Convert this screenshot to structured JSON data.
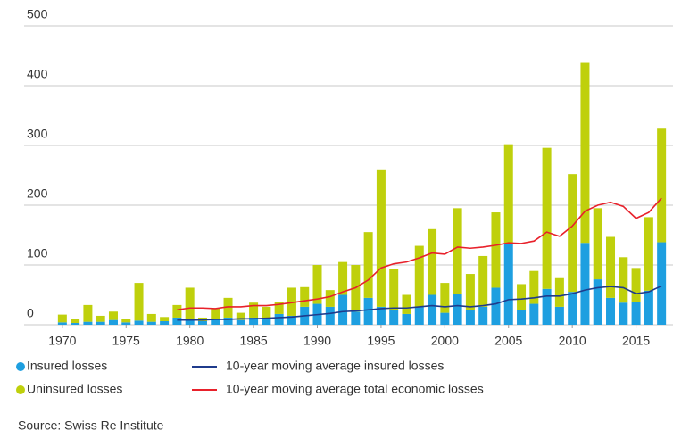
{
  "chart_data": {
    "type": "stacked-bar-line",
    "x": [
      1970,
      1971,
      1972,
      1973,
      1974,
      1975,
      1976,
      1977,
      1978,
      1979,
      1980,
      1981,
      1982,
      1983,
      1984,
      1985,
      1986,
      1987,
      1988,
      1989,
      1990,
      1991,
      1992,
      1993,
      1994,
      1995,
      1996,
      1997,
      1998,
      1999,
      2000,
      2001,
      2002,
      2003,
      2004,
      2005,
      2006,
      2007,
      2008,
      2009,
      2010,
      2011,
      2012,
      2013,
      2014,
      2015,
      2016,
      2017
    ],
    "xlim": [
      1967,
      2017.9
    ],
    "xticks": [
      1970,
      1975,
      1980,
      1985,
      1990,
      1995,
      2000,
      2005,
      2010,
      2015
    ],
    "ylim": [
      0,
      500
    ],
    "yticks": [
      0,
      100,
      200,
      300,
      400,
      500
    ],
    "grid": true,
    "series": [
      {
        "name": "Insured losses",
        "kind": "bar",
        "color": "#1e9fe0",
        "values": [
          4,
          3,
          5,
          5,
          8,
          4,
          7,
          5,
          6,
          12,
          8,
          6,
          10,
          12,
          8,
          12,
          10,
          18,
          15,
          30,
          35,
          30,
          50,
          22,
          45,
          30,
          25,
          18,
          30,
          50,
          20,
          52,
          25,
          30,
          62,
          137,
          25,
          35,
          60,
          30,
          55,
          137,
          76,
          45,
          37,
          38,
          57,
          138
        ]
      },
      {
        "name": "Uninsured losses",
        "kind": "bar",
        "color": "#bfd00c",
        "values": [
          13,
          7,
          28,
          10,
          14,
          6,
          63,
          13,
          7,
          21,
          54,
          6,
          17,
          33,
          12,
          25,
          20,
          20,
          47,
          33,
          65,
          28,
          55,
          78,
          110,
          230,
          68,
          32,
          102,
          110,
          50,
          143,
          60,
          85,
          126,
          165,
          43,
          55,
          236,
          48,
          197,
          301,
          119,
          102,
          76,
          57,
          123,
          190
        ]
      },
      {
        "name": "10-year moving average insured losses",
        "kind": "line",
        "color": "#1f3b8c",
        "values": [
          null,
          null,
          null,
          null,
          null,
          null,
          null,
          null,
          null,
          8,
          8,
          8,
          9,
          9,
          10,
          10,
          11,
          12,
          13,
          15,
          17,
          19,
          22,
          23,
          25,
          27,
          28,
          28,
          30,
          32,
          30,
          32,
          30,
          32,
          35,
          42,
          43,
          45,
          48,
          48,
          52,
          58,
          62,
          64,
          62,
          52,
          55,
          65
        ]
      },
      {
        "name": "10-year moving average total economic losses",
        "kind": "line",
        "color": "#e8212b",
        "values": [
          null,
          null,
          null,
          null,
          null,
          null,
          null,
          null,
          null,
          25,
          28,
          28,
          27,
          30,
          30,
          32,
          32,
          34,
          37,
          40,
          43,
          47,
          55,
          62,
          75,
          95,
          102,
          105,
          112,
          120,
          118,
          130,
          128,
          130,
          133,
          137,
          136,
          140,
          155,
          148,
          165,
          190,
          200,
          205,
          198,
          178,
          188,
          212
        ]
      }
    ],
    "source": "Source: Swiss Re Institute"
  }
}
